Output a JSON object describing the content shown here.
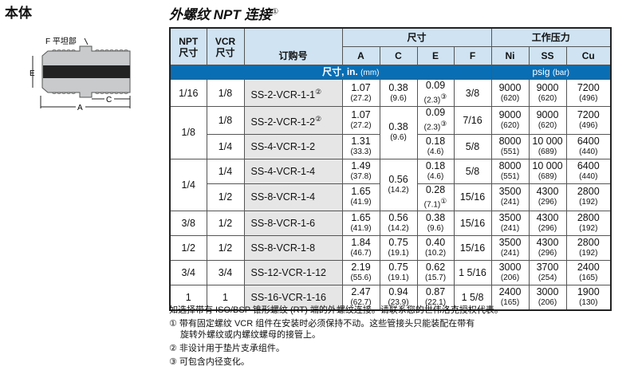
{
  "left_title": "本体",
  "diagram": {
    "flat_label": "F 平坦部",
    "labels": [
      "E",
      "A",
      "C"
    ]
  },
  "title": "外螺纹 NPT 连接",
  "title_note": "①",
  "table": {
    "headers": {
      "npt": "NPT\n尺寸",
      "vcr": "VCR\n尺寸",
      "order": "订购号",
      "dims": "尺寸",
      "pressure": "工作压力",
      "a": "A",
      "c": "C",
      "e": "E",
      "f": "F",
      "ni": "Ni",
      "ss": "SS",
      "cu": "Cu"
    },
    "units_dims": "尺寸, in.",
    "units_dims_mm": "(mm)",
    "units_pressure": "psig",
    "units_pressure_bar": "(bar)",
    "rows": [
      {
        "npt": "1/16",
        "vcr": "1/8",
        "order": "SS-2-VCR-1-1",
        "order_note": "②",
        "a": "1.07",
        "a_mm": "(27.2)",
        "c": "0.38",
        "c_mm": "(9.6)",
        "e": "0.09",
        "e_mm": "(2.3)",
        "e_note": "③",
        "f": "3/8",
        "ni": "9000",
        "ni_bar": "(620)",
        "ss": "9000",
        "ss_bar": "(620)",
        "cu": "7200",
        "cu_bar": "(496)"
      },
      {
        "npt": "1/8",
        "vcr": "1/8",
        "order": "SS-2-VCR-1-2",
        "order_note": "②",
        "a": "1.07",
        "a_mm": "(27.2)",
        "c": "0.38",
        "c_mm": "(9.6)",
        "e": "0.09",
        "e_mm": "(2.3)",
        "e_note": "③",
        "f": "7/16",
        "ni": "9000",
        "ni_bar": "(620)",
        "ss": "9000",
        "ss_bar": "(620)",
        "cu": "7200",
        "cu_bar": "(496)"
      },
      {
        "vcr": "1/4",
        "order": "SS-4-VCR-1-2",
        "a": "1.31",
        "a_mm": "(33.3)",
        "e": "0.18",
        "e_mm": "(4.6)",
        "f": "5/8",
        "ni": "8000",
        "ni_bar": "(551)",
        "ss": "10 000",
        "ss_bar": "(689)",
        "cu": "6400",
        "cu_bar": "(440)"
      },
      {
        "npt": "1/4",
        "vcr": "1/4",
        "order": "SS-4-VCR-1-4",
        "a": "1.49",
        "a_mm": "(37.8)",
        "c": "0.56",
        "c_mm": "(14.2)",
        "e": "0.18",
        "e_mm": "(4.6)",
        "f": "5/8",
        "ni": "8000",
        "ni_bar": "(551)",
        "ss": "10 000",
        "ss_bar": "(689)",
        "cu": "6400",
        "cu_bar": "(440)"
      },
      {
        "vcr": "1/2",
        "order": "SS-8-VCR-1-4",
        "a": "1.65",
        "a_mm": "(41.9)",
        "e": "0.28",
        "e_mm": "(7.1)",
        "e_note": "①",
        "f": "15/16",
        "ni": "3500",
        "ni_bar": "(241)",
        "ss": "4300",
        "ss_bar": "(296)",
        "cu": "2800",
        "cu_bar": "(192)"
      },
      {
        "npt": "3/8",
        "vcr": "1/2",
        "order": "SS-8-VCR-1-6",
        "a": "1.65",
        "a_mm": "(41.9)",
        "c": "0.56",
        "c_mm": "(14.2)",
        "e": "0.38",
        "e_mm": "(9.6)",
        "f": "15/16",
        "ni": "3500",
        "ni_bar": "(241)",
        "ss": "4300",
        "ss_bar": "(296)",
        "cu": "2800",
        "cu_bar": "(192)"
      },
      {
        "npt": "1/2",
        "vcr": "1/2",
        "order": "SS-8-VCR-1-8",
        "a": "1.84",
        "a_mm": "(46.7)",
        "c": "0.75",
        "c_mm": "(19.1)",
        "e": "0.40",
        "e_mm": "(10.2)",
        "f": "15/16",
        "ni": "3500",
        "ni_bar": "(241)",
        "ss": "4300",
        "ss_bar": "(296)",
        "cu": "2800",
        "cu_bar": "(192)"
      },
      {
        "npt": "3/4",
        "vcr": "3/4",
        "order": "SS-12-VCR-1-12",
        "a": "2.19",
        "a_mm": "(55.6)",
        "c": "0.75",
        "c_mm": "(19.1)",
        "e": "0.62",
        "e_mm": "(15.7)",
        "f": "1 5/16",
        "ni": "3000",
        "ni_bar": "(206)",
        "ss": "3700",
        "ss_bar": "(254)",
        "cu": "2400",
        "cu_bar": "(165)"
      },
      {
        "npt": "1",
        "vcr": "1",
        "order": "SS-16-VCR-1-16",
        "a": "2.47",
        "a_mm": "(62.7)",
        "c": "0.94",
        "c_mm": "(23.9)",
        "e": "0.87",
        "e_mm": "(22.1)",
        "f": "1 5/8",
        "ni": "2400",
        "ni_bar": "(165)",
        "ss": "3000",
        "ss_bar": "(206)",
        "cu": "1900",
        "cu_bar": "(130)"
      }
    ]
  },
  "notes": {
    "main": "如选择带有 ISO/BSP 锥形螺纹 (RT) 端的外螺纹连接。请联系您的世伟洛克授权代表。",
    "n1": "① 带有固定螺纹  VCR  组件在安装时必须保持不动。这些管接头只能装配在带有",
    "n1b": "旋转外螺纹或内螺纹螺母的接管上。",
    "n2": "② 非设计用于垫片支承组件。",
    "n3": "③ 可包含内径变化。"
  },
  "colors": {
    "header_bg": "#cfe3f2",
    "band_bg": "#0a6eb4",
    "order_bg": "#e6e6e6"
  }
}
